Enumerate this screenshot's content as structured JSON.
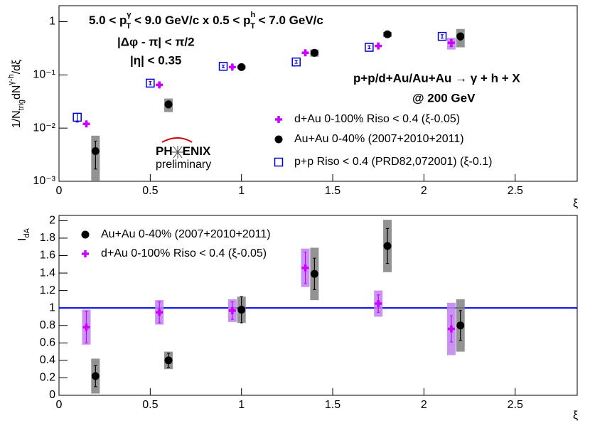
{
  "chart_data": [
    {
      "type": "scatter",
      "log_y": true,
      "ylabel": [
        "1/N",
        "trig",
        "dN",
        "γ-h",
        "/dξ"
      ],
      "xlabel": "ξ",
      "xlim": [
        0,
        2.84
      ],
      "xticks": [
        0,
        0.5,
        1,
        1.5,
        2,
        2.5
      ],
      "ylim": [
        0.001,
        2
      ],
      "yticks": [
        {
          "value": 0.001,
          "label": "10⁻³"
        },
        {
          "value": 0.01,
          "label": "10⁻²"
        },
        {
          "value": 0.1,
          "label": "10⁻¹"
        },
        1
      ],
      "annotations": {
        "kinematics": [
          "5.0 < p",
          "γ",
          "T",
          " < 9.0 GeV/c x 0.5 < p",
          "h",
          "T",
          " < 7.0 GeV/c"
        ],
        "dphi": "|Δφ - π| < π/2",
        "eta": "|η| < 0.35",
        "reaction": "p+p/d+Au/Au+Au → γ + h + X",
        "energy": "@ 200 GeV",
        "logo": [
          "PH",
          "ENIX"
        ],
        "preliminary": "preliminary"
      },
      "series": [
        {
          "name": "d+Au 0-100% Riso < 0.4 (ξ-0.05)",
          "marker": "plus",
          "color": "#cc00ff",
          "sys_color": "#c080f0",
          "x": [
            0.15,
            0.55,
            0.95,
            1.35,
            1.75,
            2.15
          ],
          "values": [
            0.012,
            0.065,
            0.14,
            0.26,
            0.35,
            0.4
          ],
          "errors": [
            0.001,
            0.004,
            0.008,
            0.02,
            0.03,
            0.06
          ],
          "sys": [
            null,
            null,
            null,
            null,
            null,
            0.1
          ]
        },
        {
          "name": "Au+Au 0-40% (2007+2010+2011)",
          "marker": "circle",
          "color": "#000000",
          "sys_color": "#808080",
          "x": [
            0.2,
            0.6,
            1.0,
            1.4,
            1.8,
            2.2
          ],
          "values": [
            0.0037,
            0.028,
            0.14,
            0.26,
            0.58,
            0.53
          ],
          "errors": [
            0.002,
            0.004,
            0.01,
            0.02,
            0.04,
            0.08
          ],
          "sys": [
            0.0035,
            0.008,
            0.01,
            0.04,
            0.065,
            0.2
          ]
        },
        {
          "name": "p+p Riso < 0.4 (PRD82,072001) (ξ-0.1)",
          "marker": "square",
          "color": "#0000cc",
          "x": [
            0.1,
            0.5,
            0.9,
            1.3,
            1.7,
            2.1
          ],
          "values": [
            0.016,
            0.07,
            0.145,
            0.175,
            0.33,
            0.53
          ],
          "errors": [
            0.003,
            0.005,
            0.008,
            0.01,
            0.02,
            0.04
          ]
        }
      ]
    },
    {
      "type": "scatter",
      "log_y": false,
      "ylabel": [
        "I",
        "dA"
      ],
      "xlabel": "ξ",
      "xlim": [
        0,
        2.84
      ],
      "xticks": [
        0,
        0.5,
        1,
        1.5,
        2,
        2.5
      ],
      "ylim": [
        0,
        2.06
      ],
      "yticks": [
        0,
        0.2,
        0.4,
        0.6,
        0.8,
        1,
        1.2,
        1.4,
        1.6,
        1.8,
        2
      ],
      "hline": 1,
      "hline_color": "#0000ee",
      "series": [
        {
          "name": "Au+Au 0-40% (2007+2010+2011)",
          "marker": "circle",
          "color": "#000000",
          "sys_color": "#808080",
          "x": [
            0.2,
            0.6,
            1.0,
            1.4,
            1.8,
            2.2
          ],
          "values": [
            0.22,
            0.4,
            0.98,
            1.39,
            1.71,
            0.8
          ],
          "errors": [
            0.12,
            0.08,
            0.15,
            0.18,
            0.2,
            0.17
          ],
          "sys": [
            0.2,
            0.1,
            0.15,
            0.3,
            0.3,
            0.3
          ]
        },
        {
          "name": "d+Au 0-100% Riso < 0.4 (ξ-0.05)",
          "marker": "plus",
          "color": "#cc00ff",
          "sys_color": "#c080f0",
          "x": [
            0.15,
            0.55,
            0.95,
            1.35,
            1.75,
            2.15
          ],
          "values": [
            0.78,
            0.95,
            0.97,
            1.46,
            1.05,
            0.76
          ],
          "errors": [
            0.18,
            0.12,
            0.1,
            0.18,
            0.1,
            0.15
          ],
          "sys": [
            0.2,
            0.14,
            0.13,
            0.22,
            0.15,
            0.3
          ]
        }
      ]
    }
  ]
}
